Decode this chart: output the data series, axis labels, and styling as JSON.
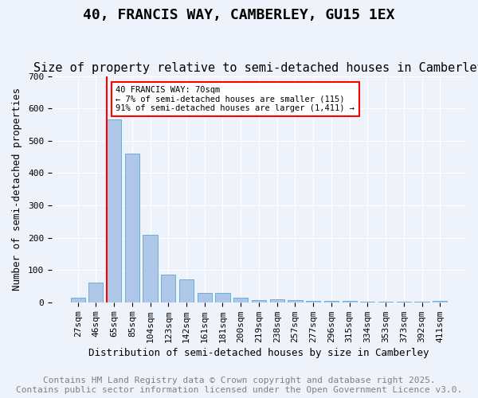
{
  "title": "40, FRANCIS WAY, CAMBERLEY, GU15 1EX",
  "subtitle": "Size of property relative to semi-detached houses in Camberley",
  "xlabel": "Distribution of semi-detached houses by size in Camberley",
  "ylabel": "Number of semi-detached properties",
  "categories": [
    "27sqm",
    "46sqm",
    "65sqm",
    "85sqm",
    "104sqm",
    "123sqm",
    "142sqm",
    "161sqm",
    "181sqm",
    "200sqm",
    "219sqm",
    "238sqm",
    "257sqm",
    "277sqm",
    "296sqm",
    "315sqm",
    "334sqm",
    "353sqm",
    "373sqm",
    "392sqm",
    "411sqm"
  ],
  "values": [
    15,
    60,
    567,
    460,
    210,
    85,
    70,
    30,
    30,
    15,
    8,
    10,
    7,
    5,
    5,
    4,
    3,
    2,
    1,
    1,
    5
  ],
  "bar_color": "#aec6e8",
  "bar_edgecolor": "#6aaed6",
  "red_line_x": 1.6,
  "annotation_text": "40 FRANCIS WAY: 70sqm\n← 7% of semi-detached houses are smaller (115)\n91% of semi-detached houses are larger (1,411) →",
  "annotation_box_color": "#ffffff",
  "annotation_box_edgecolor": "#cc0000",
  "ylim": [
    0,
    700
  ],
  "yticks": [
    0,
    100,
    200,
    300,
    400,
    500,
    600,
    700
  ],
  "background_color": "#eef3fb",
  "plot_bg_color": "#eef3fb",
  "footer_line1": "Contains HM Land Registry data © Crown copyright and database right 2025.",
  "footer_line2": "Contains public sector information licensed under the Open Government Licence v3.0.",
  "title_fontsize": 13,
  "subtitle_fontsize": 11,
  "tick_fontsize": 8,
  "axis_label_fontsize": 9,
  "footer_fontsize": 8
}
